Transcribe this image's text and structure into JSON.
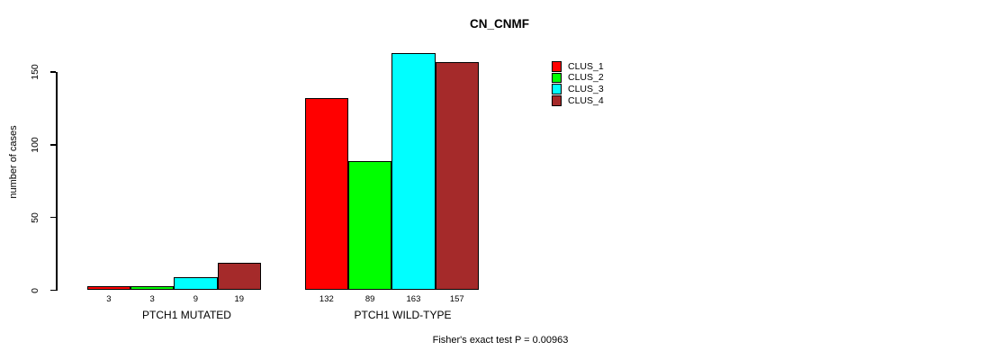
{
  "chart_data": {
    "type": "bar",
    "title": "CN_CNMF",
    "ylabel": "number of cases",
    "xlabel": "",
    "categories": [
      "PTCH1 MUTATED",
      "PTCH1 WILD-TYPE"
    ],
    "series": [
      {
        "name": "CLUS_1",
        "color": "#FF0000",
        "values": [
          3,
          132
        ]
      },
      {
        "name": "CLUS_2",
        "color": "#00FF00",
        "values": [
          3,
          89
        ]
      },
      {
        "name": "CLUS_3",
        "color": "#00FFFF",
        "values": [
          9,
          163
        ]
      },
      {
        "name": "CLUS_4",
        "color": "#A52A2A",
        "values": [
          19,
          157
        ]
      }
    ],
    "bar_value_labels": [
      [
        3,
        3,
        9,
        19
      ],
      [
        132,
        89,
        163,
        157
      ]
    ],
    "yticks": [
      0,
      50,
      100,
      150
    ],
    "ylim": [
      0,
      165
    ],
    "grid": false,
    "legend": {
      "position": "top-right",
      "entries": [
        "CLUS_1",
        "CLUS_2",
        "CLUS_3",
        "CLUS_4"
      ]
    },
    "annotation": "Fisher's exact test P = 0.00963"
  }
}
